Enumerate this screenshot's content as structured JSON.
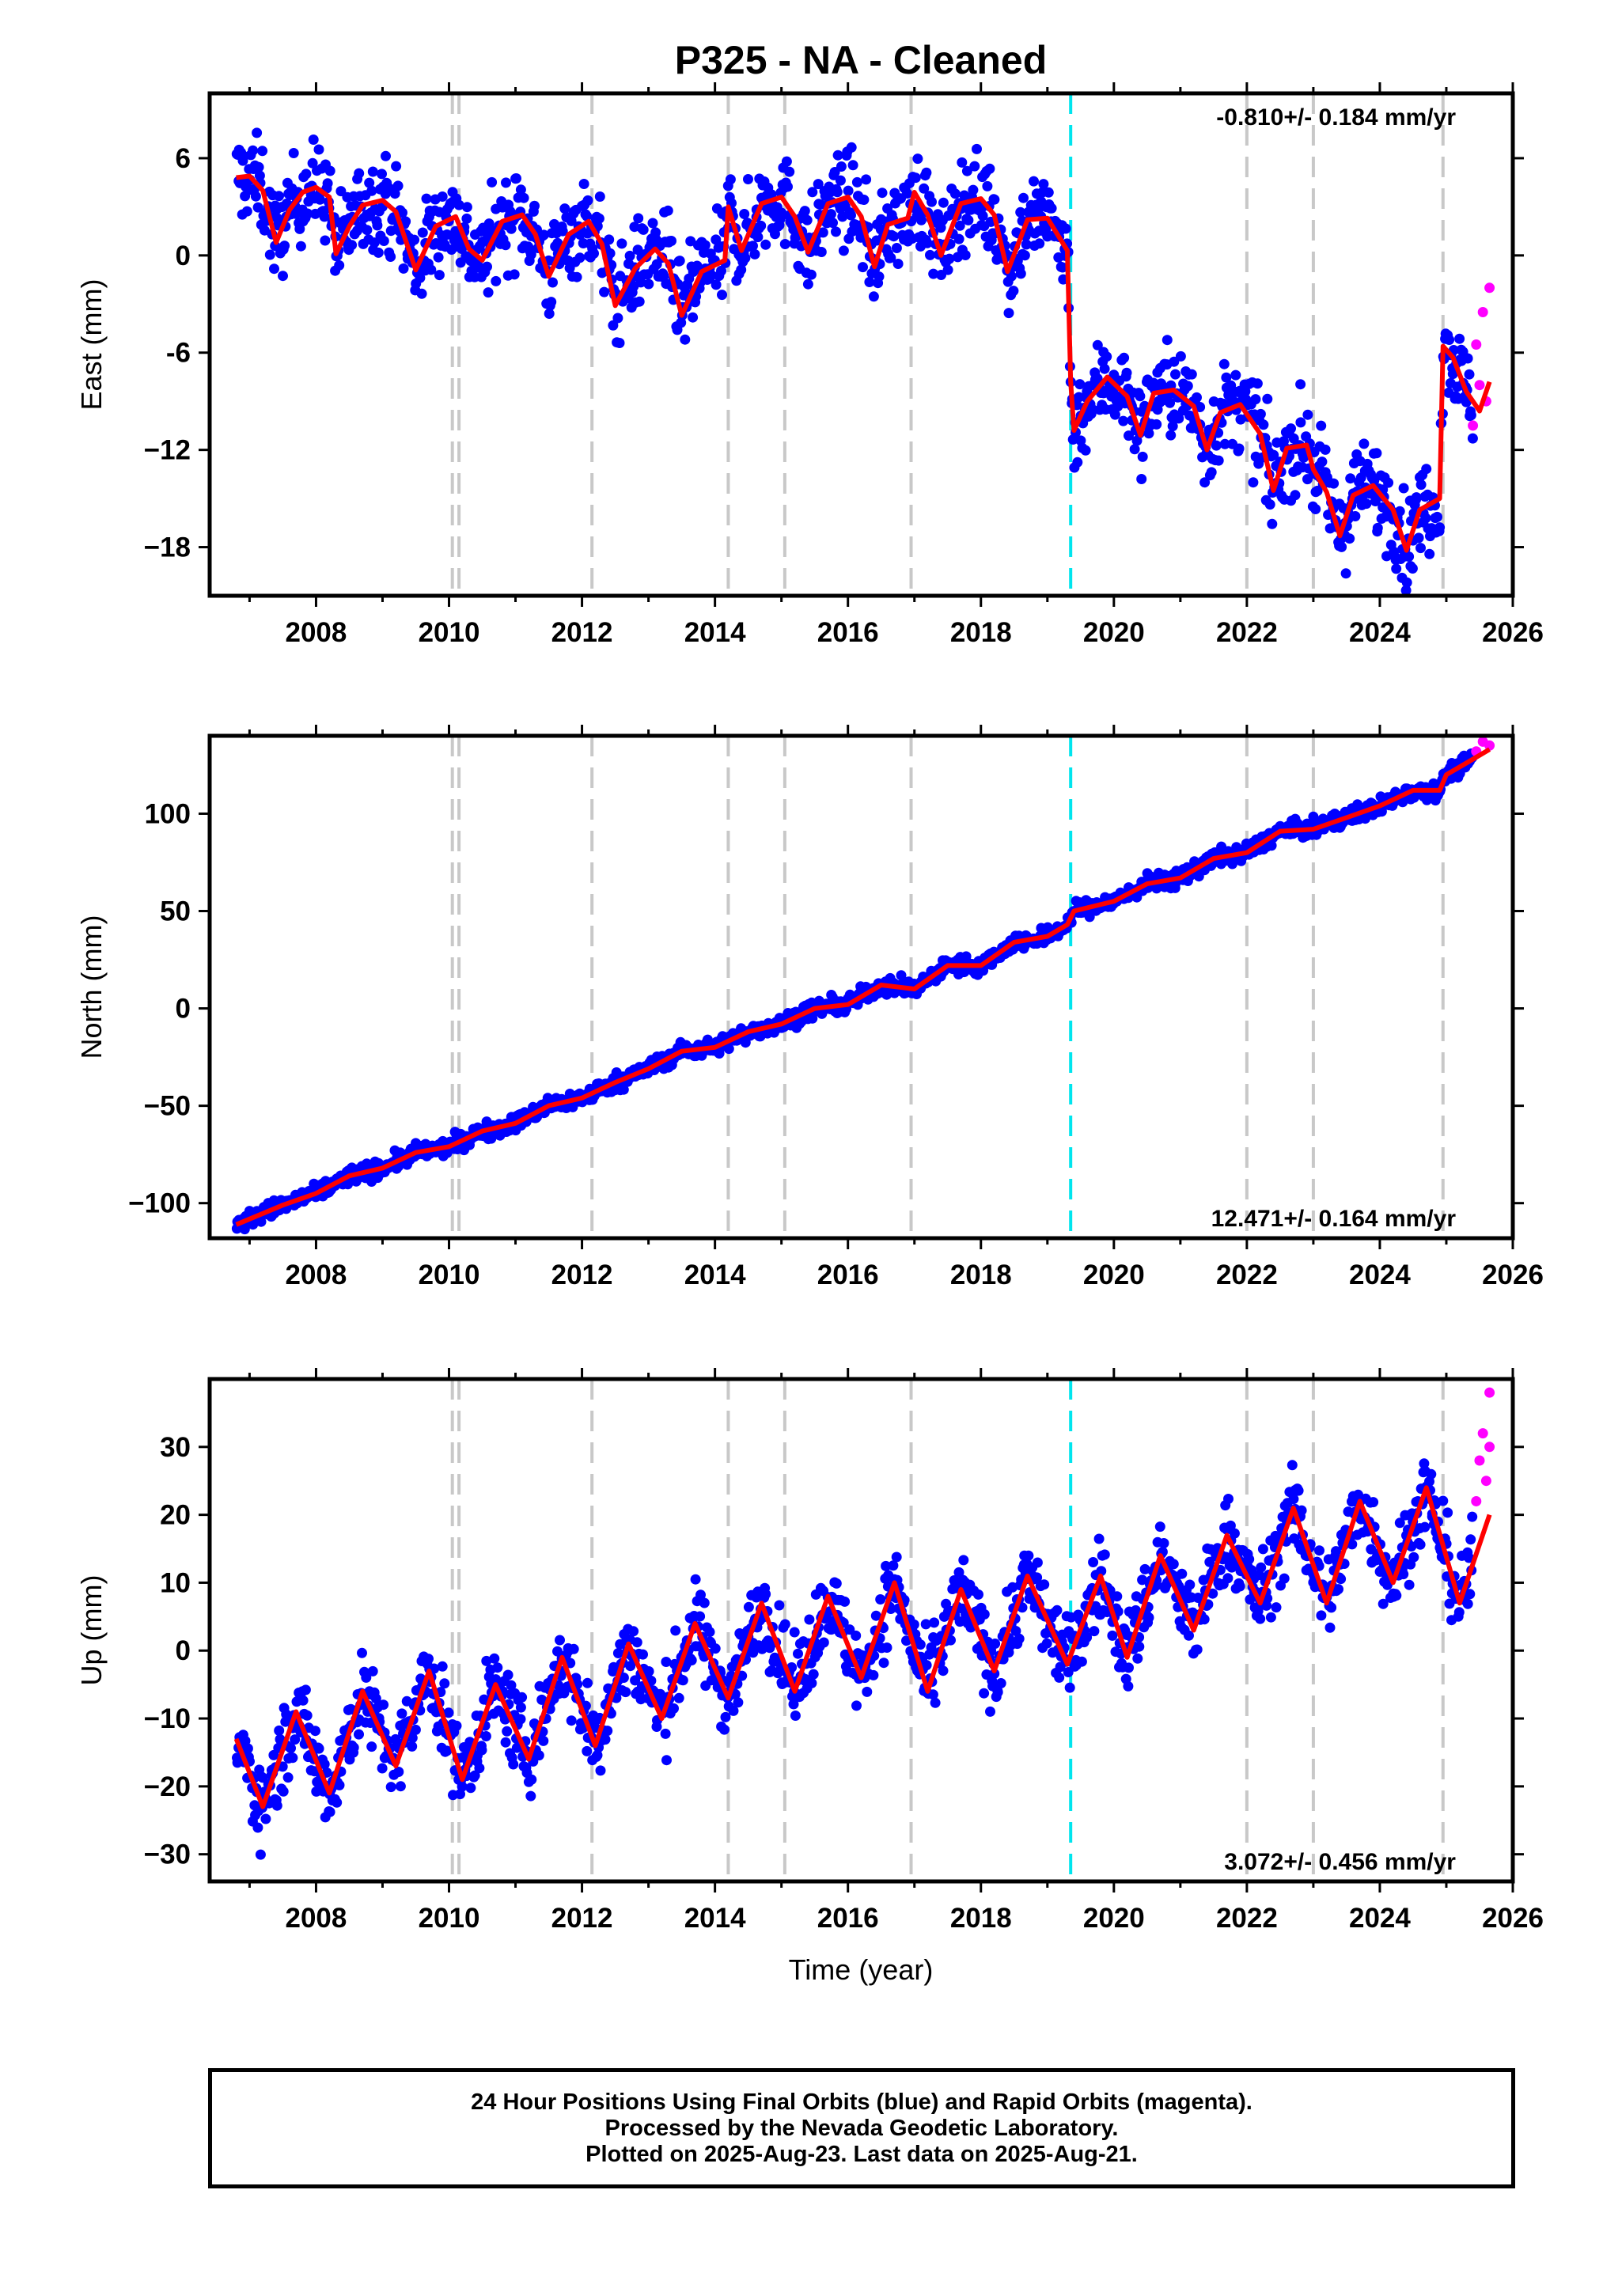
{
  "title": "P325  - NA - Cleaned",
  "xlabel": "Time (year)",
  "colors": {
    "final_orbits": "#0000ff",
    "rapid_orbits": "#ff00ff",
    "model_fit": "#ff0000",
    "equipment_change": "#c8c8c8",
    "earthquake": "#00e5ee"
  },
  "footer": {
    "line1": "24 Hour Positions Using Final Orbits (blue) and Rapid Orbits (magenta).",
    "line2": "Processed by the Nevada Geodetic Laboratory.",
    "line3": "Plotted on 2025-Aug-23. Last data on 2025-Aug-21."
  },
  "chart_data": [
    {
      "type": "scatter",
      "name": "east",
      "ylabel": "East (mm)",
      "rate_label": "-0.810+/- 0.184 mm/yr",
      "rate_position": "top-right",
      "xlim": [
        2006.4,
        2026.0
      ],
      "ylim": [
        -21,
        10
      ],
      "xticks": [
        2008,
        2010,
        2012,
        2014,
        2016,
        2018,
        2020,
        2022,
        2024,
        2026
      ],
      "yticks": [
        6,
        0,
        -6,
        -12,
        -18
      ],
      "ytick_labels": [
        "6",
        "0",
        "-6",
        "−12",
        "−18"
      ],
      "equipment_change_years": [
        2010.05,
        2010.15,
        2012.15,
        2014.2,
        2015.05,
        2016.95,
        2022.0,
        2023.0,
        2024.95
      ],
      "earthquake_years": [
        2019.35
      ],
      "model_fit": {
        "x": [
          2006.8,
          2007.0,
          2007.2,
          2007.4,
          2007.6,
          2007.8,
          2008.0,
          2008.2,
          2008.3,
          2008.5,
          2008.7,
          2009.0,
          2009.2,
          2009.5,
          2009.8,
          2010.1,
          2010.3,
          2010.5,
          2010.8,
          2011.1,
          2011.3,
          2011.5,
          2011.8,
          2012.1,
          2012.3,
          2012.5,
          2012.8,
          2013.1,
          2013.3,
          2013.5,
          2013.8,
          2014.15,
          2014.2,
          2014.4,
          2014.7,
          2015.0,
          2015.2,
          2015.4,
          2015.7,
          2016.0,
          2016.2,
          2016.4,
          2016.6,
          2016.9,
          2017.0,
          2017.2,
          2017.4,
          2017.7,
          2018.0,
          2018.2,
          2018.4,
          2018.7,
          2019.0,
          2019.3,
          2019.35,
          2019.4,
          2019.6,
          2019.9,
          2020.2,
          2020.4,
          2020.6,
          2020.9,
          2021.2,
          2021.4,
          2021.6,
          2021.9,
          2022.2,
          2022.4,
          2022.6,
          2022.9,
          2023.0,
          2023.2,
          2023.4,
          2023.6,
          2023.9,
          2024.2,
          2024.4,
          2024.6,
          2024.9,
          2024.95,
          2025.1,
          2025.3,
          2025.5,
          2025.65
        ],
        "y": [
          4.8,
          4.9,
          4.0,
          0.8,
          2.8,
          3.9,
          4.2,
          3.6,
          0.1,
          1.8,
          3.1,
          3.4,
          2.7,
          -0.9,
          1.8,
          2.4,
          0.4,
          -0.3,
          2.1,
          2.5,
          1.3,
          -1.3,
          1.3,
          2.1,
          0.7,
          -3.1,
          -0.8,
          0.4,
          -0.5,
          -3.7,
          -1.0,
          -0.3,
          3.0,
          0.3,
          3.2,
          3.6,
          2.4,
          0.2,
          3.2,
          3.6,
          2.4,
          -0.7,
          1.9,
          2.3,
          3.9,
          2.5,
          0.0,
          3.2,
          3.5,
          2.5,
          -1.0,
          2.2,
          2.3,
          0.3,
          -7.8,
          -10.8,
          -9.0,
          -7.5,
          -8.7,
          -11.1,
          -8.5,
          -8.3,
          -9.3,
          -12.0,
          -9.7,
          -9.2,
          -11.0,
          -14.5,
          -11.9,
          -11.7,
          -13.2,
          -14.6,
          -17.3,
          -14.8,
          -14.2,
          -15.7,
          -18.2,
          -15.7,
          -15.0,
          -5.6,
          -6.3,
          -8.4,
          -9.6,
          -7.8
        ]
      },
      "rapid_orbits": {
        "x": [
          2025.4,
          2025.45,
          2025.5,
          2025.55,
          2025.6,
          2025.65
        ],
        "y": [
          -10.5,
          -5.5,
          -8.0,
          -3.5,
          -9.0,
          -2.0
        ]
      }
    },
    {
      "type": "scatter",
      "name": "north",
      "ylabel": "North (mm)",
      "rate_label": "12.471+/- 0.164 mm/yr",
      "rate_position": "bottom-right",
      "xlim": [
        2006.4,
        2026.0
      ],
      "ylim": [
        -118,
        140
      ],
      "xticks": [
        2008,
        2010,
        2012,
        2014,
        2016,
        2018,
        2020,
        2022,
        2024,
        2026
      ],
      "yticks": [
        100,
        50,
        0,
        -50,
        -100
      ],
      "ytick_labels": [
        "100",
        "50",
        "0",
        "−50",
        "−100"
      ],
      "equipment_change_years": [
        2010.05,
        2010.15,
        2012.15,
        2014.2,
        2015.05,
        2016.95,
        2022.0,
        2023.0,
        2024.95
      ],
      "earthquake_years": [
        2019.35
      ],
      "model_fit": {
        "x": [
          2006.8,
          2007.5,
          2008.0,
          2008.5,
          2009.0,
          2009.5,
          2010.0,
          2010.5,
          2011.0,
          2011.5,
          2012.0,
          2012.5,
          2013.0,
          2013.5,
          2014.0,
          2014.5,
          2015.0,
          2015.5,
          2016.0,
          2016.5,
          2017.0,
          2017.5,
          2018.0,
          2018.5,
          2019.0,
          2019.3,
          2019.4,
          2020.0,
          2020.5,
          2021.0,
          2021.5,
          2022.0,
          2022.5,
          2023.0,
          2023.5,
          2024.0,
          2024.5,
          2024.9,
          2025.0,
          2025.3,
          2025.65
        ],
        "y": [
          -111,
          -101,
          -95,
          -86,
          -82,
          -74,
          -71,
          -63,
          -59,
          -50,
          -46,
          -38,
          -31,
          -22,
          -20,
          -12,
          -8,
          0,
          2,
          12,
          10,
          22,
          22,
          34,
          37,
          43,
          50,
          55,
          64,
          67,
          77,
          80,
          91,
          92,
          98,
          104,
          112,
          112,
          120,
          126,
          133
        ]
      },
      "rapid_orbits": {
        "x": [
          2025.45,
          2025.55,
          2025.65
        ],
        "y": [
          132,
          137,
          135
        ]
      }
    },
    {
      "type": "scatter",
      "name": "up",
      "ylabel": "Up (mm)",
      "rate_label": "3.072+/- 0.456 mm/yr",
      "rate_position": "bottom-right",
      "xlim": [
        2006.4,
        2026.0
      ],
      "ylim": [
        -34,
        40
      ],
      "xticks": [
        2008,
        2010,
        2012,
        2014,
        2016,
        2018,
        2020,
        2022,
        2024,
        2026
      ],
      "yticks": [
        30,
        20,
        10,
        0,
        -10,
        -20,
        -30
      ],
      "ytick_labels": [
        "30",
        "20",
        "10",
        "0",
        "−10",
        "−20",
        "−30"
      ],
      "equipment_change_years": [
        2010.05,
        2010.15,
        2012.15,
        2014.2,
        2015.05,
        2016.95,
        2022.0,
        2023.0,
        2024.95
      ],
      "earthquake_years": [
        2019.35
      ],
      "model_fit": {
        "x": [
          2006.8,
          2007.2,
          2007.7,
          2008.2,
          2008.7,
          2009.2,
          2009.7,
          2010.2,
          2010.7,
          2011.2,
          2011.7,
          2012.2,
          2012.7,
          2013.2,
          2013.7,
          2014.2,
          2014.7,
          2015.2,
          2015.7,
          2016.2,
          2016.7,
          2017.2,
          2017.7,
          2018.2,
          2018.7,
          2019.3,
          2019.8,
          2020.2,
          2020.7,
          2021.2,
          2021.7,
          2022.2,
          2022.7,
          2023.2,
          2023.7,
          2024.2,
          2024.7,
          2025.2,
          2025.65
        ],
        "y": [
          -13,
          -23,
          -9,
          -21,
          -6,
          -17,
          -3,
          -19,
          -5,
          -16,
          -1,
          -14,
          1,
          -10,
          4,
          -7,
          7,
          -6,
          8,
          -4,
          10,
          -6,
          9,
          -3,
          11,
          -2,
          11,
          -1,
          14,
          3,
          17,
          7,
          21,
          7,
          22,
          10,
          24,
          7,
          20
        ]
      },
      "rapid_orbits": {
        "x": [
          2025.45,
          2025.5,
          2025.55,
          2025.6,
          2025.65,
          2025.65
        ],
        "y": [
          22,
          28,
          32,
          25,
          38,
          30
        ]
      }
    }
  ]
}
